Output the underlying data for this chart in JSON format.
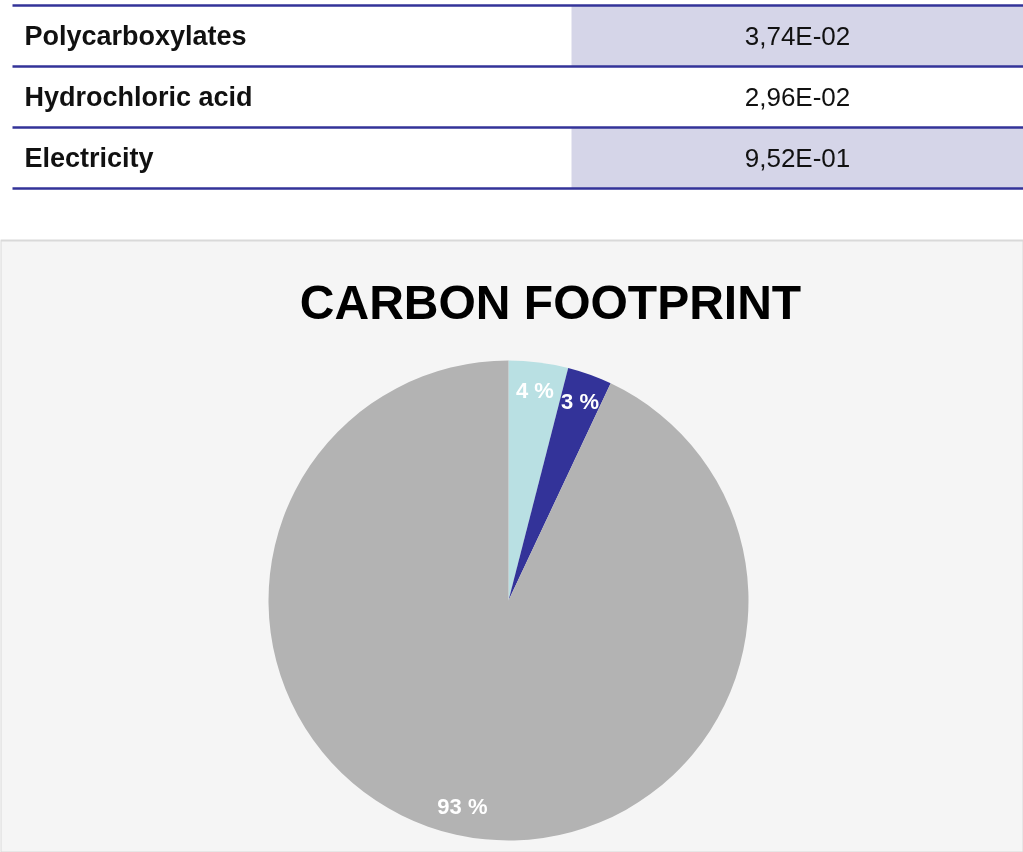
{
  "chart_data": [
    {
      "type": "other",
      "annotations": [
        "Polycarboxylates",
        "3,74E-02",
        "Hydrochloric acid",
        "2,96E-02",
        "Electricity",
        "9,52E-01"
      ]
    },
    {
      "type": "pie",
      "title": "CARBON FOOTPRINT",
      "categories": [
        null,
        null,
        null
      ],
      "values": [
        4,
        3,
        93
      ],
      "colors": [
        "#b9e0e3",
        "#333399",
        "#b3b3b3"
      ],
      "value_labels": [
        "4 %",
        "3 %",
        "93 %"
      ]
    }
  ]
}
